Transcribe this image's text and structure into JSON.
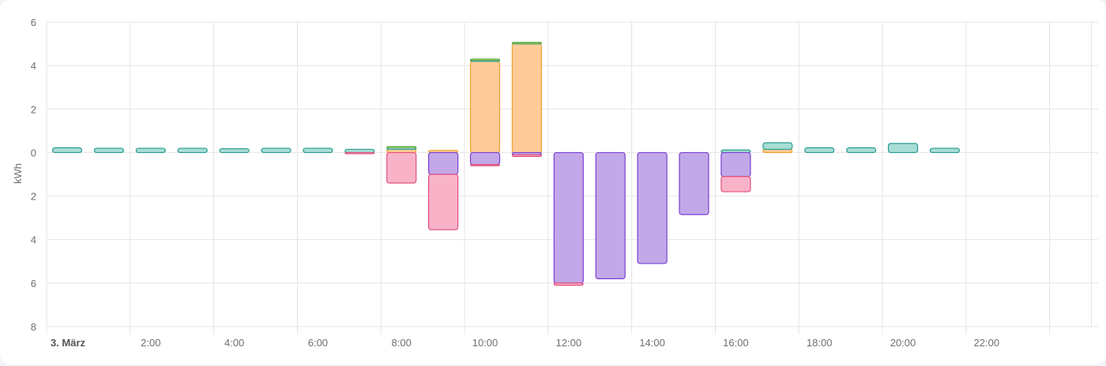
{
  "chart_data": {
    "type": "bar",
    "stacked": true,
    "ylabel": "kWh",
    "ylim": [
      -8,
      6
    ],
    "y_ticks": [
      {
        "value": 6,
        "label": "6"
      },
      {
        "value": 4,
        "label": "4"
      },
      {
        "value": 2,
        "label": "2"
      },
      {
        "value": 0,
        "label": "0"
      },
      {
        "value": -2,
        "label": "2"
      },
      {
        "value": -4,
        "label": "4"
      },
      {
        "value": -6,
        "label": "6"
      },
      {
        "value": -8,
        "label": "8"
      }
    ],
    "x_ticks": [
      {
        "hour": 0,
        "label": "3. März",
        "bold": true
      },
      {
        "hour": 2,
        "label": "2:00"
      },
      {
        "hour": 4,
        "label": "4:00"
      },
      {
        "hour": 6,
        "label": "6:00"
      },
      {
        "hour": 8,
        "label": "8:00"
      },
      {
        "hour": 10,
        "label": "10:00"
      },
      {
        "hour": 12,
        "label": "12:00"
      },
      {
        "hour": 14,
        "label": "14:00"
      },
      {
        "hour": 16,
        "label": "16:00"
      },
      {
        "hour": 18,
        "label": "18:00"
      },
      {
        "hour": 20,
        "label": "20:00"
      },
      {
        "hour": 22,
        "label": "22:00"
      }
    ],
    "categories": [
      "0",
      "1",
      "2",
      "3",
      "4",
      "5",
      "6",
      "7",
      "8",
      "9",
      "10",
      "11",
      "12",
      "13",
      "14",
      "15",
      "16",
      "17",
      "18",
      "19",
      "20",
      "21",
      "22",
      "23"
    ],
    "series": [
      {
        "fill": "#ffcc99",
        "stroke": "#f0a030",
        "values": [
          0,
          0,
          0,
          0,
          0,
          0,
          0,
          0,
          0.15,
          0.1,
          4.2,
          5.0,
          0,
          0,
          0,
          0,
          0,
          0.15,
          0,
          0,
          0,
          0,
          0,
          0
        ]
      },
      {
        "fill": "#a8ddd6",
        "stroke": "#2a9d8f",
        "values": [
          0.22,
          0.2,
          0.2,
          0.2,
          0.18,
          0.2,
          0.2,
          0.15,
          0.08,
          0,
          0.05,
          0.05,
          0,
          0,
          0,
          0,
          0.12,
          0.3,
          0.22,
          0.22,
          0.42,
          0.2,
          0,
          0
        ]
      },
      {
        "fill": "#c9e7a8",
        "stroke": "#6ab04c",
        "values": [
          0,
          0,
          0,
          0,
          0,
          0,
          0,
          0,
          0.05,
          0,
          0.05,
          0.02,
          0,
          0,
          0,
          0,
          0,
          0,
          0,
          0,
          0,
          0,
          0,
          0
        ]
      },
      {
        "fill": "#c2a8e8",
        "stroke": "#7b3fd4",
        "values": [
          0,
          0,
          0,
          0,
          0,
          0,
          0,
          0,
          0,
          -1.0,
          -0.55,
          -0.1,
          -6.0,
          -5.8,
          -5.1,
          -2.85,
          -1.1,
          0,
          0,
          0,
          0,
          0,
          0,
          0
        ]
      },
      {
        "fill": "#f9b3c8",
        "stroke": "#e0507e",
        "values": [
          0,
          0,
          0,
          0,
          0,
          0,
          0,
          -0.05,
          -1.4,
          -2.55,
          -0.05,
          -0.08,
          -0.1,
          0,
          0,
          0,
          -0.7,
          0,
          0,
          0,
          0,
          0,
          0,
          0
        ]
      }
    ]
  }
}
